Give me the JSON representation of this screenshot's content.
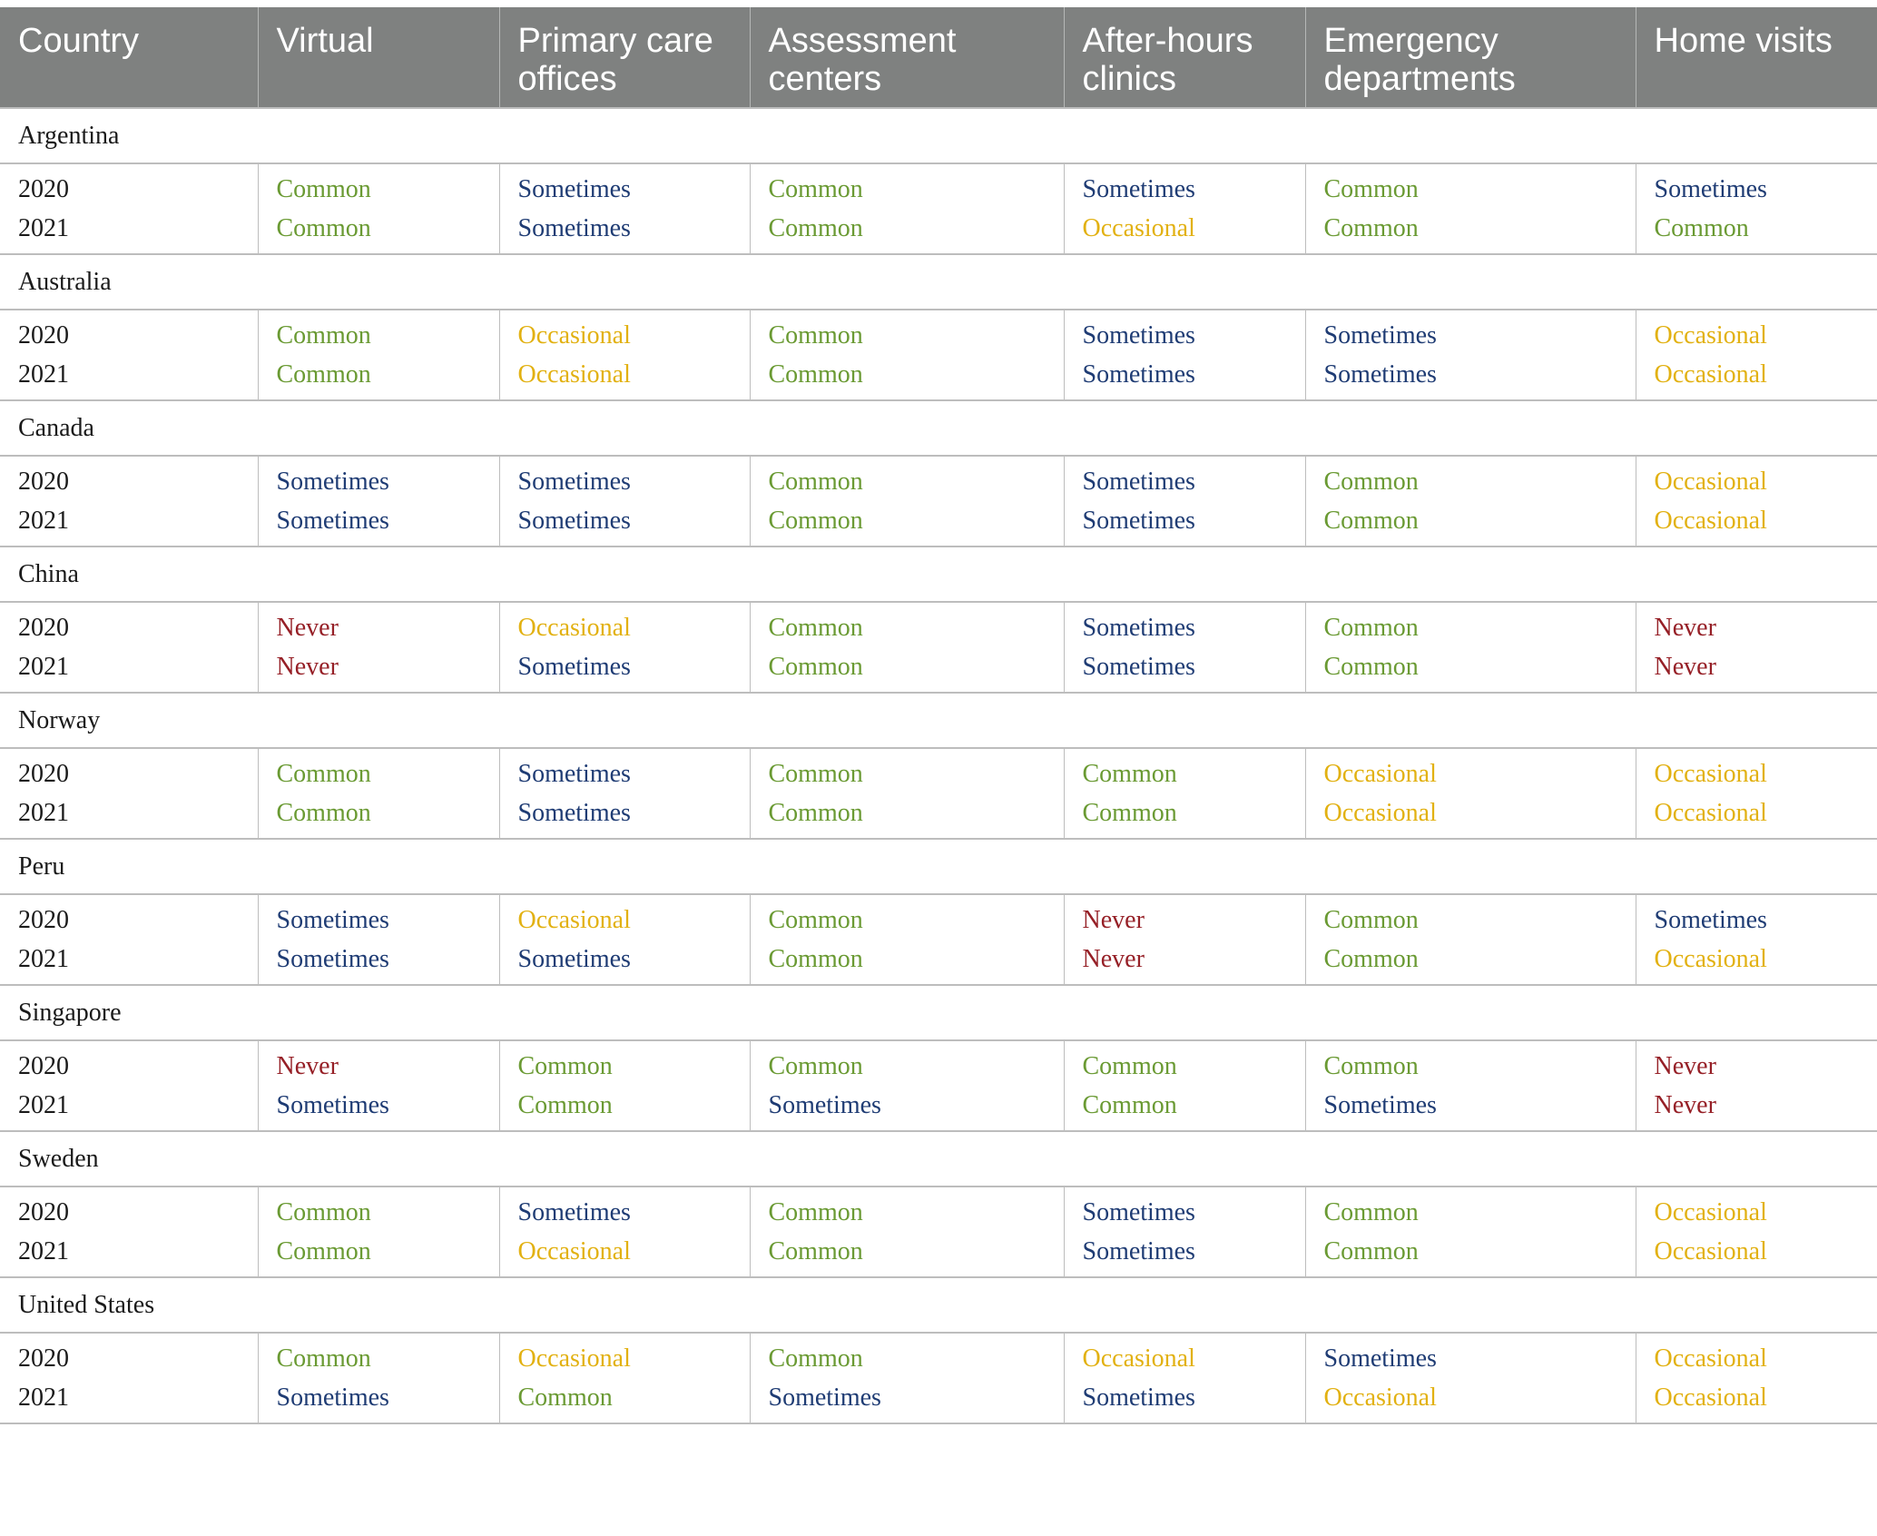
{
  "headers": [
    "Country",
    "Virtual",
    "Primary care offices",
    "Assessment centers",
    "After-hours clinics",
    "Emergency departments",
    "Home visits"
  ],
  "headers_wrapped": [
    [
      "Country"
    ],
    [
      "Virtual"
    ],
    [
      "Primary care",
      "offices"
    ],
    [
      "Assessment",
      "centers"
    ],
    [
      "After-hours",
      "clinics"
    ],
    [
      "Emergency",
      "departments"
    ],
    [
      "Home visits"
    ]
  ],
  "value_colors": {
    "Common": "#6a9a33",
    "Sometimes": "#1f3c74",
    "Occasional": "#e2b112",
    "Never": "#962027"
  },
  "countries": [
    {
      "name": "Argentina",
      "years": [
        {
          "year": "2020",
          "values": [
            "Common",
            "Sometimes",
            "Common",
            "Sometimes",
            "Common",
            "Sometimes"
          ]
        },
        {
          "year": "2021",
          "values": [
            "Common",
            "Sometimes",
            "Common",
            "Occasional",
            "Common",
            "Common"
          ]
        }
      ]
    },
    {
      "name": "Australia",
      "years": [
        {
          "year": "2020",
          "values": [
            "Common",
            "Occasional",
            "Common",
            "Sometimes",
            "Sometimes",
            "Occasional"
          ]
        },
        {
          "year": "2021",
          "values": [
            "Common",
            "Occasional",
            "Common",
            "Sometimes",
            "Sometimes",
            "Occasional"
          ]
        }
      ]
    },
    {
      "name": "Canada",
      "years": [
        {
          "year": "2020",
          "values": [
            "Sometimes",
            "Sometimes",
            "Common",
            "Sometimes",
            "Common",
            "Occasional"
          ]
        },
        {
          "year": "2021",
          "values": [
            "Sometimes",
            "Sometimes",
            "Common",
            "Sometimes",
            "Common",
            "Occasional"
          ]
        }
      ]
    },
    {
      "name": "China",
      "years": [
        {
          "year": "2020",
          "values": [
            "Never",
            "Occasional",
            "Common",
            "Sometimes",
            "Common",
            "Never"
          ]
        },
        {
          "year": "2021",
          "values": [
            "Never",
            "Sometimes",
            "Common",
            "Sometimes",
            "Common",
            "Never"
          ]
        }
      ]
    },
    {
      "name": "Norway",
      "years": [
        {
          "year": "2020",
          "values": [
            "Common",
            "Sometimes",
            "Common",
            "Common",
            "Occasional",
            "Occasional"
          ]
        },
        {
          "year": "2021",
          "values": [
            "Common",
            "Sometimes",
            "Common",
            "Common",
            "Occasional",
            "Occasional"
          ]
        }
      ]
    },
    {
      "name": "Peru",
      "years": [
        {
          "year": "2020",
          "values": [
            "Sometimes",
            "Occasional",
            "Common",
            "Never",
            "Common",
            "Sometimes"
          ]
        },
        {
          "year": "2021",
          "values": [
            "Sometimes",
            "Sometimes",
            "Common",
            "Never",
            "Common",
            "Occasional"
          ]
        }
      ]
    },
    {
      "name": "Singapore",
      "years": [
        {
          "year": "2020",
          "values": [
            "Never",
            "Common",
            "Common",
            "Common",
            "Common",
            "Never"
          ]
        },
        {
          "year": "2021",
          "values": [
            "Sometimes",
            "Common",
            "Sometimes",
            "Common",
            "Sometimes",
            "Never"
          ]
        }
      ]
    },
    {
      "name": "Sweden",
      "years": [
        {
          "year": "2020",
          "values": [
            "Common",
            "Sometimes",
            "Common",
            "Sometimes",
            "Common",
            "Occasional"
          ]
        },
        {
          "year": "2021",
          "values": [
            "Common",
            "Occasional",
            "Common",
            "Sometimes",
            "Common",
            "Occasional"
          ]
        }
      ]
    },
    {
      "name": "United States",
      "years": [
        {
          "year": "2020",
          "values": [
            "Common",
            "Occasional",
            "Common",
            "Occasional",
            "Sometimes",
            "Occasional"
          ]
        },
        {
          "year": "2021",
          "values": [
            "Sometimes",
            "Common",
            "Sometimes",
            "Sometimes",
            "Occasional",
            "Occasional"
          ]
        }
      ]
    }
  ]
}
